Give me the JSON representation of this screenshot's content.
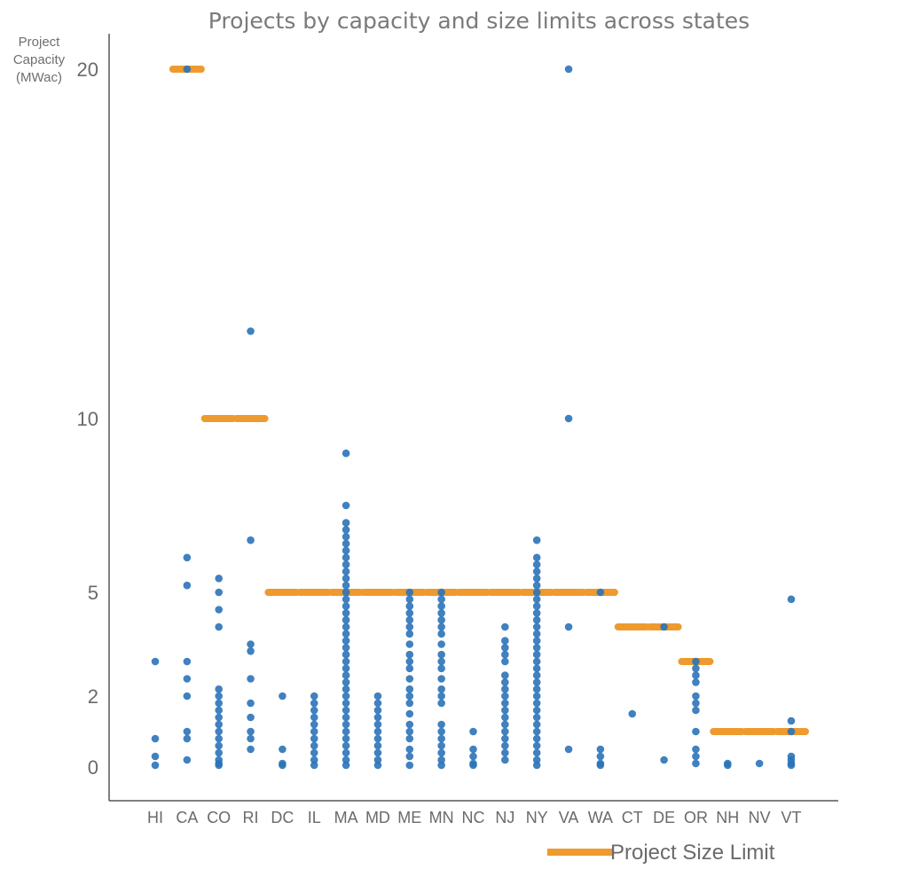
{
  "chart_data": {
    "type": "scatter",
    "title": "Projects by capacity and size limits across states",
    "ylabel": [
      "Project",
      "Capacity",
      "(MWac)"
    ],
    "xlabel": "",
    "y_ticks": [
      "0",
      "2",
      "5",
      "10",
      "20"
    ],
    "y_tick_values": [
      0,
      2,
      5,
      10,
      20
    ],
    "ylim": [
      -0.8,
      21.5
    ],
    "categories": [
      "HI",
      "CA",
      "CO",
      "RI",
      "DC",
      "IL",
      "MA",
      "MD",
      "ME",
      "MN",
      "NC",
      "NJ",
      "NY",
      "VA",
      "WA",
      "CT",
      "DE",
      "OR",
      "NH",
      "NV",
      "VT"
    ],
    "colors": {
      "points": "#2b73b8",
      "limit": "#ee9a2e",
      "axis": "#555555"
    },
    "grid": false,
    "legend": {
      "position": "bottom-right",
      "label": "Project Size Limit"
    },
    "series": [
      {
        "name": "Project Size Limit",
        "kind": "limit",
        "values": [
          null,
          20,
          10,
          10,
          5,
          5,
          5,
          5,
          5,
          5,
          5,
          5,
          5,
          5,
          5,
          4,
          4,
          3,
          1,
          1,
          1
        ]
      },
      {
        "kind": "projects",
        "points": {
          "HI": [
            3,
            0.8,
            0.3,
            0.05
          ],
          "CA": [
            20,
            6,
            5.2,
            3,
            2.5,
            2,
            1,
            0.8,
            0.2
          ],
          "CO": [
            5.4,
            5,
            4.5,
            4,
            2.2,
            2,
            1.8,
            1.6,
            1.4,
            1.2,
            1,
            0.8,
            0.6,
            0.4,
            0.2,
            0.1,
            0.05
          ],
          "RI": [
            12.5,
            6.5,
            3.5,
            3.3,
            2.5,
            1.8,
            1.4,
            1,
            0.8,
            0.5
          ],
          "DC": [
            2,
            0.5,
            0.1,
            0.05
          ],
          "IL": [
            2,
            1.8,
            1.6,
            1.4,
            1.2,
            1,
            0.8,
            0.6,
            0.4,
            0.2,
            0.05
          ],
          "MA": [
            9,
            7.5,
            7,
            6.8,
            6.6,
            6.4,
            6.2,
            6,
            5.8,
            5.6,
            5.4,
            5.2,
            5,
            4.8,
            4.6,
            4.4,
            4.2,
            4,
            3.8,
            3.6,
            3.4,
            3.2,
            3,
            2.8,
            2.6,
            2.4,
            2.2,
            2,
            1.8,
            1.6,
            1.4,
            1.2,
            1,
            0.8,
            0.6,
            0.4,
            0.2,
            0.05
          ],
          "MD": [
            2,
            1.8,
            1.6,
            1.4,
            1.2,
            1,
            0.8,
            0.6,
            0.4,
            0.2,
            0.05
          ],
          "ME": [
            5,
            4.8,
            4.6,
            4.4,
            4.2,
            4,
            3.8,
            3.5,
            3.2,
            3,
            2.8,
            2.5,
            2.2,
            2,
            1.8,
            1.5,
            1.2,
            1,
            0.8,
            0.5,
            0.3,
            0.05
          ],
          "MN": [
            5,
            4.8,
            4.6,
            4.4,
            4.2,
            4,
            3.8,
            3.5,
            3.2,
            3,
            2.8,
            2.5,
            2.2,
            2,
            1.8,
            1.2,
            1,
            0.8,
            0.6,
            0.4,
            0.2,
            0.05
          ],
          "NC": [
            1,
            0.5,
            0.3,
            0.1,
            0.05
          ],
          "NJ": [
            4,
            3.6,
            3.4,
            3.2,
            3,
            2.6,
            2.4,
            2.2,
            2,
            1.8,
            1.6,
            1.4,
            1.2,
            1,
            0.8,
            0.6,
            0.4,
            0.2
          ],
          "NY": [
            6.5,
            6,
            5.8,
            5.6,
            5.4,
            5.2,
            5,
            4.8,
            4.6,
            4.4,
            4.2,
            4,
            3.8,
            3.6,
            3.4,
            3.2,
            3,
            2.8,
            2.6,
            2.4,
            2.2,
            2,
            1.8,
            1.6,
            1.4,
            1.2,
            1,
            0.8,
            0.6,
            0.4,
            0.2,
            0.05
          ],
          "VA": [
            20,
            10,
            4,
            0.5
          ],
          "WA": [
            5,
            0.5,
            0.3,
            0.1,
            0.05
          ],
          "CT": [
            1.5
          ],
          "DE": [
            4,
            0.2
          ],
          "OR": [
            3,
            2.8,
            2.6,
            2.4,
            2,
            1.8,
            1.6,
            1,
            0.5,
            0.3,
            0.1
          ],
          "NH": [
            0.1,
            0.05
          ],
          "NV": [
            0.1
          ],
          "VT": [
            4.8,
            1.3,
            1,
            0.3,
            0.2,
            0.1,
            0.05
          ]
        }
      }
    ]
  }
}
